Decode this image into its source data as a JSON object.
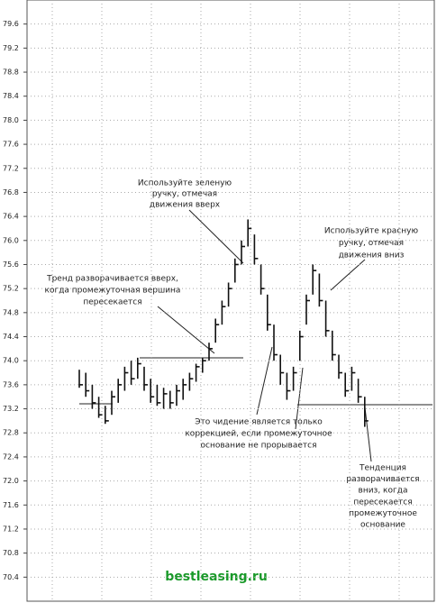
{
  "chart_data": {
    "type": "hlc",
    "ylim": [
      70,
      80
    ],
    "yticks": [
      70.4,
      70.8,
      71.2,
      71.6,
      {
        "value": 72,
        "label": "72.0"
      },
      72.4,
      72.8,
      73.2,
      73.6,
      {
        "value": 74,
        "label": "74.0"
      },
      74.4,
      74.8,
      75.2,
      75.6,
      {
        "value": 76,
        "label": "76.0"
      },
      76.4,
      76.8,
      77.2,
      77.6,
      {
        "value": 78,
        "label": "78.0"
      },
      78.4,
      78.8,
      79.2,
      79.6
    ],
    "grid": true,
    "color": "#111111",
    "high": [
      73.85,
      73.8,
      73.6,
      73.4,
      73.25,
      73.5,
      73.7,
      73.9,
      74.0,
      74.05,
      73.9,
      73.7,
      73.6,
      73.55,
      73.5,
      73.6,
      73.7,
      73.8,
      73.95,
      74.05,
      74.3,
      74.7,
      75.0,
      75.3,
      75.7,
      76.0,
      76.35,
      76.1,
      75.6,
      75.1,
      74.6,
      74.1,
      73.8,
      73.9,
      74.5,
      75.1,
      75.6,
      75.45,
      75.0,
      74.5,
      74.1,
      73.8,
      73.9,
      73.7,
      73.4
    ],
    "low": [
      73.55,
      73.4,
      73.2,
      73.05,
      72.95,
      73.1,
      73.3,
      73.5,
      73.6,
      73.7,
      73.5,
      73.3,
      73.25,
      73.2,
      73.2,
      73.25,
      73.35,
      73.5,
      73.65,
      73.8,
      74.0,
      74.3,
      74.6,
      74.9,
      75.3,
      75.6,
      75.9,
      75.6,
      75.1,
      74.5,
      74.0,
      73.6,
      73.35,
      73.5,
      74.0,
      74.6,
      75.1,
      74.9,
      74.4,
      74.0,
      73.7,
      73.4,
      73.5,
      73.3,
      72.9
    ],
    "close": [
      73.6,
      73.5,
      73.3,
      73.1,
      73.0,
      73.4,
      73.6,
      73.8,
      73.7,
      73.95,
      73.6,
      73.4,
      73.3,
      73.45,
      73.3,
      73.5,
      73.6,
      73.7,
      73.9,
      74.0,
      74.2,
      74.6,
      74.9,
      75.2,
      75.6,
      75.9,
      76.2,
      75.7,
      75.2,
      74.6,
      74.1,
      73.8,
      73.5,
      73.8,
      74.4,
      75.0,
      75.5,
      75.0,
      74.5,
      74.1,
      73.8,
      73.5,
      73.8,
      73.4,
      73.0
    ],
    "annotations": [
      [
        "Используйте зеленую",
        "ручку, отмечая",
        "движения вверх"
      ],
      [
        "Используйте красную",
        "ручку, отмечая",
        "движения вниз"
      ],
      [
        "Тренд разворачивается вверх,",
        "когда промежуточная вершина",
        "пересекается"
      ],
      [
        "Это чидение является только",
        "коррекцией, если промежуточное",
        "основание не прорывается"
      ],
      [
        "Тенденция",
        "разворачивается",
        "вниз, когда",
        "пересекается",
        "промежуточное",
        "основание"
      ]
    ],
    "watermark": "bestleasing.ru"
  }
}
